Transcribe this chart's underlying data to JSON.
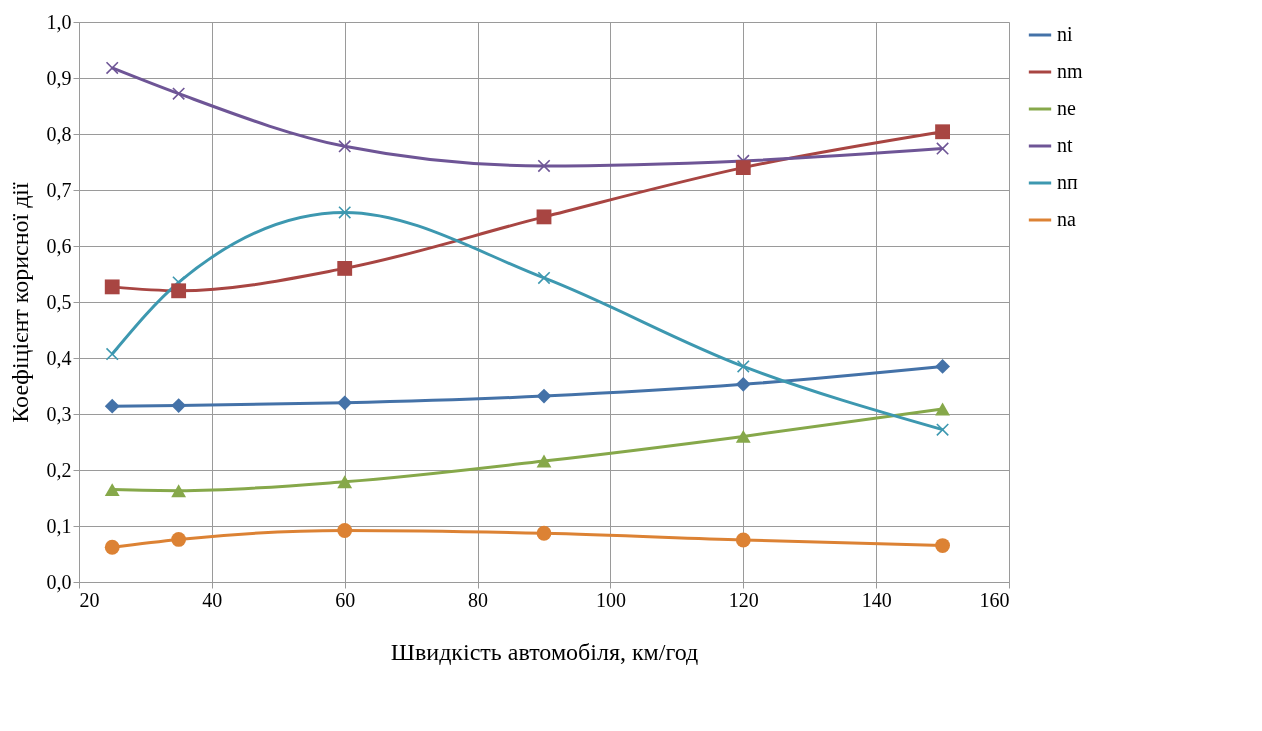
{
  "chart_data": {
    "type": "line",
    "xlabel": "Швидкість автомобіля, км/год",
    "ylabel": "Коефіцієнт корисної дії",
    "x": [
      25,
      35,
      60,
      90,
      120,
      150
    ],
    "series": [
      {
        "name": "ni",
        "color": "#4472a8",
        "marker": "diamond",
        "values": [
          0.314,
          0.315,
          0.32,
          0.332,
          0.353,
          0.385
        ]
      },
      {
        "name": "nm",
        "color": "#a84542",
        "marker": "square",
        "values": [
          0.527,
          0.52,
          0.56,
          0.652,
          0.74,
          0.804
        ]
      },
      {
        "name": "ne",
        "color": "#86a84a",
        "marker": "triangle",
        "values": [
          0.165,
          0.163,
          0.179,
          0.216,
          0.26,
          0.309
        ]
      },
      {
        "name": "nt",
        "color": "#6e5596",
        "marker": "cross",
        "values": [
          0.918,
          0.872,
          0.778,
          0.743,
          0.752,
          0.774
        ]
      },
      {
        "name": "nп",
        "color": "#3d98b0",
        "marker": "cross",
        "values": [
          0.407,
          0.535,
          0.66,
          0.543,
          0.385,
          0.272
        ]
      },
      {
        "name": "na",
        "color": "#dc8234",
        "marker": "circle",
        "values": [
          0.062,
          0.076,
          0.092,
          0.087,
          0.075,
          0.065
        ]
      }
    ],
    "xlim": [
      20,
      160
    ],
    "xticks": [
      20,
      40,
      60,
      80,
      100,
      120,
      140,
      160
    ],
    "ylim": [
      0,
      1
    ],
    "yticks": [
      {
        "value": 0,
        "label": "0,0"
      },
      {
        "value": 0.1,
        "label": "0,1"
      },
      {
        "value": 0.2,
        "label": "0,2"
      },
      {
        "value": 0.3,
        "label": "0,3"
      },
      {
        "value": 0.4,
        "label": "0,4"
      },
      {
        "value": 0.5,
        "label": "0,5"
      },
      {
        "value": 0.6,
        "label": "0,6"
      },
      {
        "value": 0.7,
        "label": "0,7"
      },
      {
        "value": 0.8,
        "label": "0,8"
      },
      {
        "value": 0.9,
        "label": "0,9"
      },
      {
        "value": 1,
        "label": "1,0"
      }
    ],
    "grid": true,
    "legend": "right",
    "line_style": "solid"
  }
}
